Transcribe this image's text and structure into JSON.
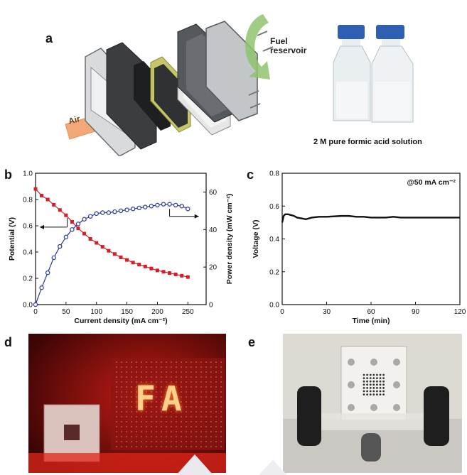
{
  "panels": {
    "a": {
      "letter": "a",
      "air_label": "Air",
      "fuel_label_line1": "Fuel",
      "fuel_label_line2": "reservoir",
      "bottle_caption": "2 M pure formic acid solution"
    },
    "b": {
      "letter": "b"
    },
    "c": {
      "letter": "c"
    },
    "d": {
      "letter": "d",
      "display_text": "FA"
    },
    "e": {
      "letter": "e"
    }
  },
  "colors": {
    "potential_series": "#d41f26",
    "power_series": "#2b3896",
    "led": "#ff3b1f"
  },
  "chart_data": [
    {
      "panel": "b",
      "type": "line",
      "xlabel": "Current density (mA cm⁻²)",
      "ylabel_left": "Potential (V)",
      "ylabel_right": "Power density (mW cm⁻²)",
      "xlim": [
        0,
        280
      ],
      "ylim_left": [
        0.0,
        1.0
      ],
      "ylim_right": [
        0,
        70
      ],
      "x_ticks": [
        0,
        50,
        100,
        150,
        200,
        250
      ],
      "y_ticks_left": [
        "0.0",
        "0.2",
        "0.4",
        "0.6",
        "0.8",
        "1.0"
      ],
      "y_ticks_right": [
        0,
        20,
        40,
        60
      ],
      "series": [
        {
          "axis": "left",
          "x": [
            0,
            10,
            20,
            30,
            40,
            50,
            60,
            70,
            80,
            90,
            100,
            110,
            120,
            130,
            140,
            150,
            160,
            170,
            180,
            190,
            200,
            210,
            220,
            230,
            240,
            250
          ],
          "values": [
            0.88,
            0.83,
            0.8,
            0.76,
            0.72,
            0.68,
            0.63,
            0.58,
            0.54,
            0.5,
            0.47,
            0.44,
            0.41,
            0.385,
            0.36,
            0.34,
            0.32,
            0.305,
            0.29,
            0.275,
            0.26,
            0.25,
            0.24,
            0.23,
            0.22,
            0.21
          ]
        },
        {
          "axis": "right",
          "x": [
            0,
            10,
            20,
            30,
            40,
            50,
            60,
            70,
            80,
            90,
            100,
            110,
            120,
            130,
            140,
            150,
            160,
            170,
            180,
            190,
            200,
            210,
            220,
            230,
            240,
            250
          ],
          "values": [
            0,
            9,
            17,
            25,
            31,
            36,
            40,
            43,
            45.5,
            47,
            48.5,
            49,
            49,
            49.5,
            50,
            50.5,
            51,
            51.5,
            52,
            52.5,
            53,
            53.5,
            53.5,
            53,
            52.5,
            51
          ]
        }
      ]
    },
    {
      "panel": "c",
      "type": "line",
      "xlabel": "Time (min)",
      "ylabel": "Voltage (V)",
      "annotation": "@50 mA cm⁻²",
      "xlim": [
        0,
        120
      ],
      "ylim": [
        0.0,
        0.8
      ],
      "x_ticks": [
        0,
        30,
        60,
        90,
        120
      ],
      "y_ticks": [
        "0.0",
        "0.2",
        "0.4",
        "0.6",
        "0.8"
      ],
      "series": [
        {
          "x": [
            0,
            1,
            2,
            4,
            6,
            8,
            10,
            13,
            16,
            20,
            25,
            30,
            40,
            45,
            50,
            55,
            60,
            65,
            70,
            75,
            80,
            90,
            100,
            110,
            120
          ],
          "values": [
            0.5,
            0.54,
            0.55,
            0.55,
            0.545,
            0.54,
            0.53,
            0.525,
            0.52,
            0.53,
            0.535,
            0.535,
            0.54,
            0.54,
            0.535,
            0.535,
            0.53,
            0.53,
            0.53,
            0.535,
            0.53,
            0.53,
            0.53,
            0.53,
            0.53
          ]
        }
      ]
    }
  ]
}
